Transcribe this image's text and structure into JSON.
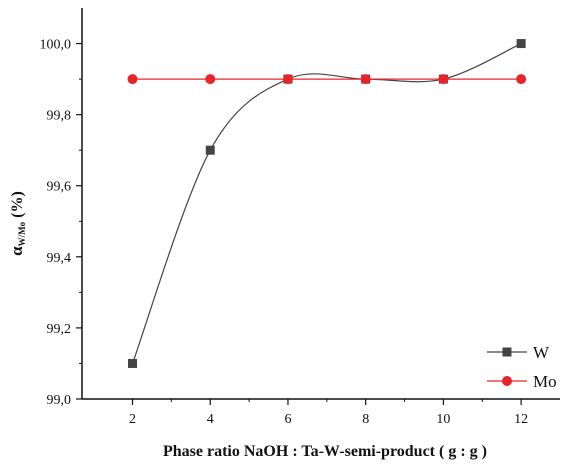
{
  "chart_data": {
    "type": "line",
    "x": [
      2,
      4,
      6,
      8,
      10,
      12
    ],
    "series": [
      {
        "name": "W",
        "values": [
          99.1,
          99.7,
          99.9,
          99.9,
          99.9,
          100.0
        ],
        "color": "#444444",
        "marker": "square",
        "smooth": true
      },
      {
        "name": "Mo",
        "values": [
          99.9,
          99.9,
          99.9,
          99.9,
          99.9,
          99.9
        ],
        "color": "#e8242a",
        "marker": "circle",
        "smooth": false
      }
    ],
    "xlabel": "Phase ratio NaOH : Ta-W-semi-product ( g : g )",
    "ylabel_main": "α",
    "ylabel_sub": "W/Mo",
    "ylabel_unit": "(%)",
    "xlim": [
      0.7,
      13.0
    ],
    "ylim": [
      99.0,
      100.1
    ],
    "xticks": [
      2,
      4,
      6,
      8,
      10,
      12
    ],
    "xtick_labels": [
      "2",
      "4",
      "6",
      "8",
      "10",
      "12"
    ],
    "yticks": [
      99.0,
      99.2,
      99.4,
      99.6,
      99.8,
      100.0
    ],
    "ytick_labels": [
      "99,0",
      "99,2",
      "99,4",
      "99,6",
      "99,8",
      "100,0"
    ],
    "legend_position": "bottom-right",
    "grid": false
  }
}
